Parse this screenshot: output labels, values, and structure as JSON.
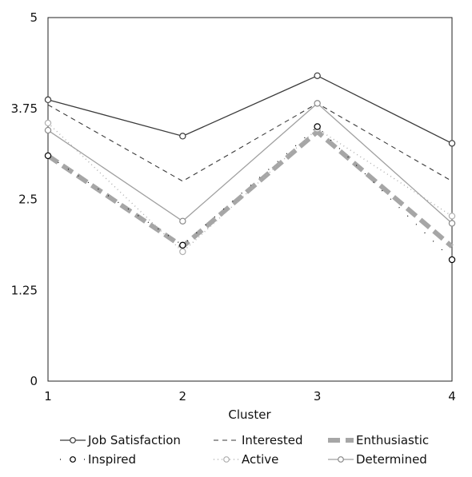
{
  "chart_data": {
    "type": "line",
    "title": "",
    "xlabel": "Cluster",
    "ylabel": "",
    "x": [
      1,
      2,
      3,
      4
    ],
    "x_tick_labels": [
      "1",
      "2",
      "3",
      "4"
    ],
    "ylim": [
      0,
      5
    ],
    "y_ticks": [
      0,
      1.25,
      2.5,
      3.75,
      5
    ],
    "y_tick_labels": [
      "0",
      "1.25",
      "2.5",
      "3.75",
      "5"
    ],
    "grid": false,
    "legend_position": "bottom",
    "series": [
      {
        "name": "Job Satisfaction",
        "values": [
          3.87,
          3.37,
          4.2,
          3.27
        ],
        "style": "solid-dark",
        "color": "#3a3a3a"
      },
      {
        "name": "Interested",
        "values": [
          3.8,
          2.75,
          3.82,
          2.75
        ],
        "style": "dashed-dark",
        "color": "#3a3a3a"
      },
      {
        "name": "Enthusiastic",
        "values": [
          3.1,
          1.85,
          3.43,
          1.85
        ],
        "style": "thick-dashed-gray",
        "color": "#a6a6a6"
      },
      {
        "name": "Inspired",
        "values": [
          3.1,
          1.87,
          3.5,
          1.67
        ],
        "style": "dotted-black",
        "color": "#000000"
      },
      {
        "name": "Active",
        "values": [
          3.55,
          1.78,
          3.47,
          2.27
        ],
        "style": "dotted-gray",
        "color": "#b0b0b0"
      },
      {
        "name": "Determined",
        "values": [
          3.45,
          2.2,
          3.82,
          2.17
        ],
        "style": "solid-gray",
        "color": "#a0a0a0"
      }
    ]
  }
}
